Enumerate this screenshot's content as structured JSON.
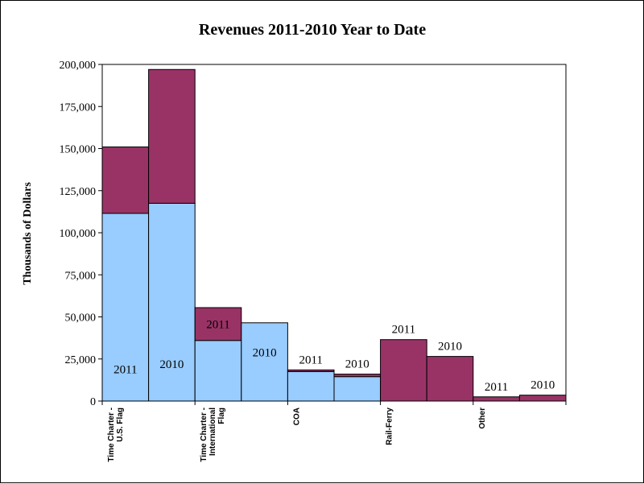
{
  "chart_data": {
    "type": "bar",
    "title": "Revenues 2011-2010 Year to Date",
    "ylabel": "Thousands of Dollars",
    "ylim": [
      0,
      200000
    ],
    "yticks": [
      "0",
      "25,000",
      "50,000",
      "75,000",
      "100,000",
      "125,000",
      "150,000",
      "175,000",
      "200,000"
    ],
    "categories": [
      [
        "Time Charter -",
        "U.S. Flag"
      ],
      [
        "Time Charter -",
        "International",
        "Flag"
      ],
      [
        "COA"
      ],
      [
        "Rail-Ferry"
      ],
      [
        "Other"
      ]
    ],
    "colors": {
      "lower": "#99ccff",
      "upper": "#993366"
    },
    "bars": [
      {
        "category": 0,
        "label": "2011",
        "lower": 111500,
        "upper": 151000
      },
      {
        "category": 0,
        "label": "2010",
        "lower": 117500,
        "upper": 197000
      },
      {
        "category": 1,
        "label": "2011",
        "lower": 36000,
        "upper": 55500
      },
      {
        "category": 1,
        "label": "2010",
        "lower": 46500,
        "upper": 46500
      },
      {
        "category": 2,
        "label": "2011",
        "lower": 17500,
        "upper": 18500
      },
      {
        "category": 2,
        "label": "2010",
        "lower": 14500,
        "upper": 16000
      },
      {
        "category": 3,
        "label": "2011",
        "lower": 0,
        "upper": 36500
      },
      {
        "category": 3,
        "label": "2010",
        "lower": 0,
        "upper": 26500
      },
      {
        "category": 4,
        "label": "2011",
        "lower": 0,
        "upper": 2500
      },
      {
        "category": 4,
        "label": "2010",
        "lower": 0,
        "upper": 3500
      }
    ]
  }
}
